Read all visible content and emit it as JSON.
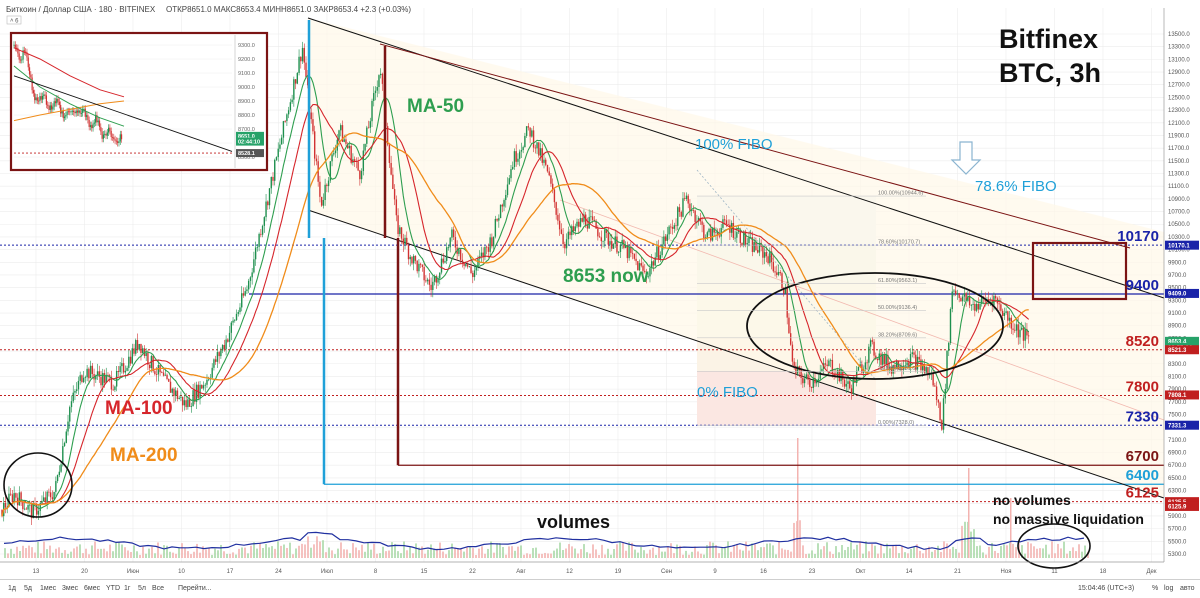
{
  "header": {
    "symbol": "Биткоин / Доллар США · 180 · BITFINEX",
    "ohlc": "ОТКР8651.0  МАКС8653.4  МИНН8651.0  ЗАКР8653.4  +2.3 (+0.03%)"
  },
  "title_lines": [
    "Bitfinex",
    "BTC, 3h"
  ],
  "chart_data": {
    "type": "candlestick",
    "timeframe": "3h",
    "exchange": "BITFINEX",
    "ylim": [
      5300,
      13500
    ],
    "grid": true,
    "y_ticks": [
      13500,
      13300,
      13100,
      12900,
      12700,
      12500,
      12300,
      12100,
      11900,
      11700,
      11500,
      11300,
      11100,
      10900,
      10700,
      10500,
      10300,
      10100,
      9900,
      9700,
      9500,
      9300,
      9100,
      8900,
      8700,
      8500,
      8300,
      8100,
      7900,
      7700,
      7500,
      7300,
      7100,
      6900,
      6700,
      6500,
      6300,
      6100,
      5900,
      5700,
      5500,
      5300
    ],
    "x_labels": [
      "13",
      "20",
      "Июн",
      "10",
      "17",
      "24",
      "Июл",
      "8",
      "15",
      "22",
      "Авг",
      "12",
      "19",
      "Сен",
      "9",
      "16",
      "23",
      "Окт",
      "14",
      "21",
      "Ноя",
      "11",
      "18",
      "Дек"
    ],
    "price_path": [
      {
        "x": 0.0,
        "p": 6000
      },
      {
        "x": 0.6,
        "p": 6250
      },
      {
        "x": 1.5,
        "p": 5950
      },
      {
        "x": 2.6,
        "p": 6300
      },
      {
        "x": 3.3,
        "p": 7600
      },
      {
        "x": 4.0,
        "p": 8200
      },
      {
        "x": 5.5,
        "p": 8000
      },
      {
        "x": 6.7,
        "p": 8650
      },
      {
        "x": 7.2,
        "p": 8350
      },
      {
        "x": 8.0,
        "p": 8000
      },
      {
        "x": 9.0,
        "p": 7650
      },
      {
        "x": 10.0,
        "p": 8050
      },
      {
        "x": 11.0,
        "p": 8700
      },
      {
        "x": 12.0,
        "p": 9500
      },
      {
        "x": 13.2,
        "p": 11200
      },
      {
        "x": 14.7,
        "p": 13300
      },
      {
        "x": 15.6,
        "p": 10800
      },
      {
        "x": 16.5,
        "p": 12000
      },
      {
        "x": 17.5,
        "p": 11300
      },
      {
        "x": 18.5,
        "p": 13000
      },
      {
        "x": 19.3,
        "p": 10500
      },
      {
        "x": 20.0,
        "p": 10000
      },
      {
        "x": 21.0,
        "p": 9500
      },
      {
        "x": 22.0,
        "p": 10300
      },
      {
        "x": 23.0,
        "p": 9700
      },
      {
        "x": 24.0,
        "p": 10300
      },
      {
        "x": 25.0,
        "p": 11500
      },
      {
        "x": 25.8,
        "p": 12000
      },
      {
        "x": 26.7,
        "p": 11300
      },
      {
        "x": 27.5,
        "p": 10200
      },
      {
        "x": 28.5,
        "p": 10600
      },
      {
        "x": 29.5,
        "p": 10300
      },
      {
        "x": 30.5,
        "p": 10100
      },
      {
        "x": 31.5,
        "p": 9700
      },
      {
        "x": 32.5,
        "p": 10300
      },
      {
        "x": 33.5,
        "p": 10900
      },
      {
        "x": 34.5,
        "p": 10300
      },
      {
        "x": 35.5,
        "p": 10500
      },
      {
        "x": 36.5,
        "p": 10200
      },
      {
        "x": 37.5,
        "p": 10000
      },
      {
        "x": 38.3,
        "p": 9500
      },
      {
        "x": 38.7,
        "p": 8200
      },
      {
        "x": 39.5,
        "p": 8000
      },
      {
        "x": 40.5,
        "p": 8300
      },
      {
        "x": 41.5,
        "p": 7900
      },
      {
        "x": 42.5,
        "p": 8550
      },
      {
        "x": 43.5,
        "p": 8250
      },
      {
        "x": 44.5,
        "p": 8400
      },
      {
        "x": 45.5,
        "p": 8100
      },
      {
        "x": 46.0,
        "p": 7350
      },
      {
        "x": 46.5,
        "p": 9500
      },
      {
        "x": 47.5,
        "p": 9200
      },
      {
        "x": 48.5,
        "p": 9350
      },
      {
        "x": 49.5,
        "p": 8900
      },
      {
        "x": 50.3,
        "p": 8653
      }
    ],
    "levels": [
      {
        "label": "10170",
        "price": 10170,
        "color": "#1a23a8",
        "style": "dotted"
      },
      {
        "label": "9400",
        "price": 9400,
        "color": "#1a23a8",
        "style": "solid"
      },
      {
        "label": "8520",
        "price": 8520,
        "color": "#c01f1f",
        "style": "dotted"
      },
      {
        "label": "7800",
        "price": 7800,
        "color": "#c01f1f",
        "style": "dotted"
      },
      {
        "label": "7330",
        "price": 7330,
        "color": "#1a23a8",
        "style": "dotted"
      },
      {
        "label": "6700",
        "price": 6700,
        "color": "#7b1414",
        "style": "solid"
      },
      {
        "label": "6400",
        "price": 6400,
        "color": "#1fa0d8",
        "style": "solid"
      },
      {
        "label": "6125",
        "price": 6125,
        "color": "#c01f1f",
        "style": "dotted"
      }
    ],
    "fibonacci": [
      {
        "label": "100.00%(10944.6)",
        "price": 10944.6
      },
      {
        "label": "78.60%(10170.7)",
        "price": 10170.7
      },
      {
        "label": "61.80%(9563.1)",
        "price": 9563.1
      },
      {
        "label": "50.00%(9136.4)",
        "price": 9136.4
      },
      {
        "label": "38.20%(8709.6)",
        "price": 8709.6
      },
      {
        "label": "23.60%(8181.6)",
        "price": 8181.6
      },
      {
        "label": "0.00%(7328.0)",
        "price": 7328.0
      }
    ],
    "price_tags": [
      {
        "label": "10170.1",
        "price": 10170,
        "color": "#1a23a8"
      },
      {
        "label": "9409.0",
        "price": 9409,
        "color": "#1a23a8"
      },
      {
        "label": "8653.4",
        "price": 8653.4,
        "color": "#26a269"
      },
      {
        "label": "02:55:14",
        "price": 8560,
        "color": "#26a269"
      },
      {
        "label": "8521.3",
        "price": 8521,
        "color": "#c01f1f"
      },
      {
        "label": "7808.1",
        "price": 7808,
        "color": "#c01f1f"
      },
      {
        "label": "7331.3",
        "price": 7331,
        "color": "#1a23a8"
      },
      {
        "label": "6125.5",
        "price": 6125.5,
        "color": "#c01f1f"
      },
      {
        "label": "6125.9",
        "price": 6050,
        "color": "#c01f1f"
      }
    ],
    "inset": {
      "y_ticks": [
        9300,
        9200,
        9100,
        9000,
        8900,
        8800,
        8700,
        8600,
        8500
      ],
      "ylim": [
        8450,
        9350
      ],
      "tags": [
        {
          "label": "8651.0",
          "price": 8651,
          "color": "#26a269"
        },
        {
          "label": "02:44:10",
          "price": 8610,
          "color": "#26a269"
        },
        {
          "label": "8528.1",
          "price": 8528,
          "color": "#555555"
        }
      ],
      "price_path": [
        {
          "x": 0.0,
          "p": 9300
        },
        {
          "x": 0.06,
          "p": 9200
        },
        {
          "x": 0.1,
          "p": 9280
        },
        {
          "x": 0.14,
          "p": 9100
        },
        {
          "x": 0.2,
          "p": 8900
        },
        {
          "x": 0.27,
          "p": 8950
        },
        {
          "x": 0.33,
          "p": 8850
        },
        {
          "x": 0.4,
          "p": 8900
        },
        {
          "x": 0.46,
          "p": 8780
        },
        {
          "x": 0.52,
          "p": 8840
        },
        {
          "x": 0.58,
          "p": 8800
        },
        {
          "x": 0.64,
          "p": 8850
        },
        {
          "x": 0.7,
          "p": 8700
        },
        {
          "x": 0.76,
          "p": 8780
        },
        {
          "x": 0.82,
          "p": 8650
        },
        {
          "x": 0.88,
          "p": 8700
        },
        {
          "x": 0.93,
          "p": 8600
        },
        {
          "x": 1.0,
          "p": 8650
        }
      ]
    },
    "annotations": {
      "ma50": "MA-50",
      "ma100": "MA-100",
      "ma200": "MA-200",
      "fibo100": "100% FIBO",
      "fibo786": "78.6% FIBO",
      "fibo0": "0% FIBO",
      "now": "8653 now",
      "volumes": "volumes",
      "no_volumes_1": "no volumes",
      "no_volumes_2": "no massive liquidation"
    },
    "series": [
      {
        "name": "MA-50",
        "color": "#2e9e4f"
      },
      {
        "name": "MA-100",
        "color": "#d6252b"
      },
      {
        "name": "MA-200",
        "color": "#f08c1a"
      }
    ]
  },
  "toolbar": {
    "ranges": [
      "1д",
      "5д",
      "1мес",
      "3мес",
      "6мес",
      "YTD",
      "1г",
      "5л",
      "Все"
    ],
    "goto": "Перейти...",
    "clock": "15:04:46 (UTC+3)",
    "pct": "%",
    "log": "log",
    "auto": "авто"
  }
}
